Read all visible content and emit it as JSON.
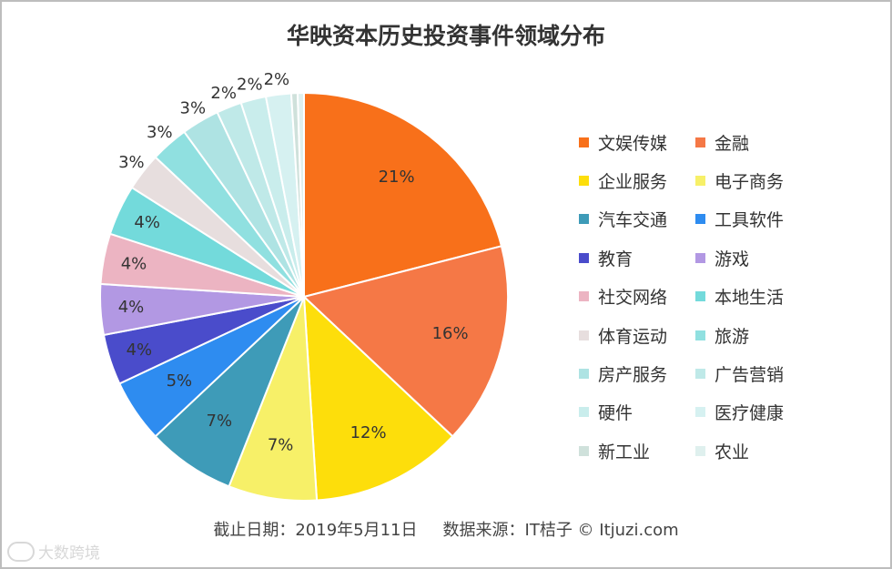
{
  "chart_data": {
    "type": "pie",
    "title": "华映资本历史投资事件领域分布",
    "slices": [
      {
        "label": "文娱传媒",
        "value": 21,
        "value_label": "21%",
        "color": "#F8701A"
      },
      {
        "label": "金融",
        "value": 16,
        "value_label": "16%",
        "color": "#F57846"
      },
      {
        "label": "企业服务",
        "value": 12,
        "value_label": "12%",
        "color": "#FDDE0B"
      },
      {
        "label": "电子商务",
        "value": 7,
        "value_label": "7%",
        "color": "#F7F068"
      },
      {
        "label": "汽车交通",
        "value": 7,
        "value_label": "7%",
        "color": "#3E9BB8"
      },
      {
        "label": "工具软件",
        "value": 5,
        "value_label": "5%",
        "color": "#2E8CF0"
      },
      {
        "label": "教育",
        "value": 4,
        "value_label": "4%",
        "color": "#4A4CCB"
      },
      {
        "label": "游戏",
        "value": 4,
        "value_label": "4%",
        "color": "#B298E3"
      },
      {
        "label": "社交网络",
        "value": 4,
        "value_label": "4%",
        "color": "#ECB4C2"
      },
      {
        "label": "本地生活",
        "value": 4,
        "value_label": "4%",
        "color": "#73DADB"
      },
      {
        "label": "体育运动",
        "value": 3,
        "value_label": "3%",
        "color": "#E7DEDE"
      },
      {
        "label": "旅游",
        "value": 3,
        "value_label": "3%",
        "color": "#90E0E0"
      },
      {
        "label": "房产服务",
        "value": 3,
        "value_label": "3%",
        "color": "#AEE3E3"
      },
      {
        "label": "广告营销",
        "value": 2,
        "value_label": "2%",
        "color": "#BFE9E8"
      },
      {
        "label": "硬件",
        "value": 2,
        "value_label": "2%",
        "color": "#C9EDEC"
      },
      {
        "label": "医疗健康",
        "value": 2,
        "value_label": "2%",
        "color": "#D6F1F1"
      },
      {
        "label": "新工业",
        "value": 0.5,
        "value_label": "",
        "color": "#CFE1DB"
      },
      {
        "label": "农业",
        "value": 0.5,
        "value_label": "",
        "color": "#DFF0EE"
      }
    ],
    "legend_position": "right"
  },
  "footer": {
    "date_text": "截止日期：2019年5月11日",
    "source_text": "数据来源：IT桔子 © Itjuzi.com"
  },
  "watermark": {
    "text": "大数跨境"
  }
}
